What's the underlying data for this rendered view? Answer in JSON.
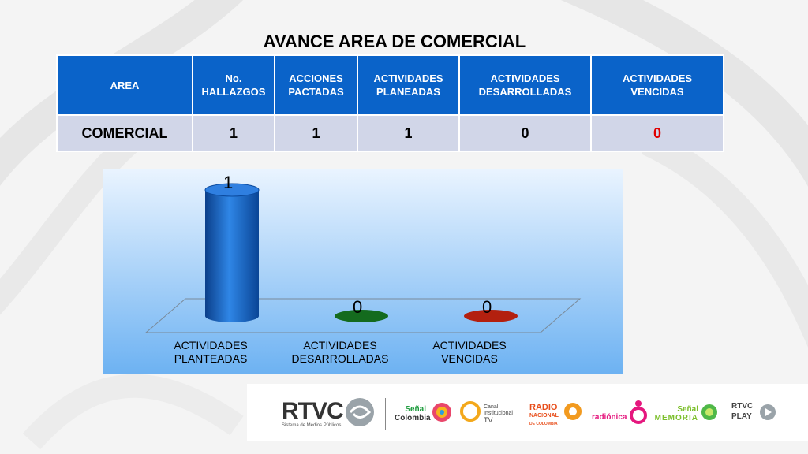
{
  "title": "AVANCE AREA DE COMERCIAL",
  "table": {
    "headers": [
      "AREA",
      "No.\nHALLAZGOS",
      "ACCIONES\nPACTADAS",
      "ACTIVIDADES\nPLANEADAS",
      "ACTIVIDADES\nDESARROLLADAS",
      "ACTIVIDADES\nVENCIDAS"
    ],
    "row": [
      "COMERCIAL",
      "1",
      "1",
      "1",
      "0",
      "0"
    ]
  },
  "colors": {
    "header_blue": "#0a63c9",
    "row_bg": "#d1d6e8",
    "bar_blue": "#1565c8",
    "bar_green": "#146b1e",
    "bar_red": "#b3200f",
    "alert_red": "#e00000"
  },
  "chart_data": {
    "type": "bar",
    "categories": [
      "ACTIVIDADES\nPLANTEADAS",
      "ACTIVIDADES\nDESARROLLADAS",
      "ACTIVIDADES\nVENCIDAS"
    ],
    "values": [
      1,
      0,
      0
    ],
    "data_labels": [
      "1",
      "0",
      "0"
    ],
    "grid": false,
    "legend": "none",
    "style": "3d-cylinder"
  },
  "logos": {
    "rtvc": "RTVC",
    "rtvc_sub": "Sistema de Medios Públicos",
    "senal_colombia_1": "Señal",
    "senal_colombia_2": "Colombia",
    "canal_1": "Canal",
    "canal_2": "Institucional",
    "canal_3": "TV",
    "radio_1": "RADIO",
    "radio_2": "NACIONAL",
    "radio_3": "DE COLOMBIA",
    "radionica": "radiónica",
    "memoria_1": "Señal",
    "memoria_2": "MEMORIA",
    "play_1": "RTVC",
    "play_2": "PLAY"
  }
}
